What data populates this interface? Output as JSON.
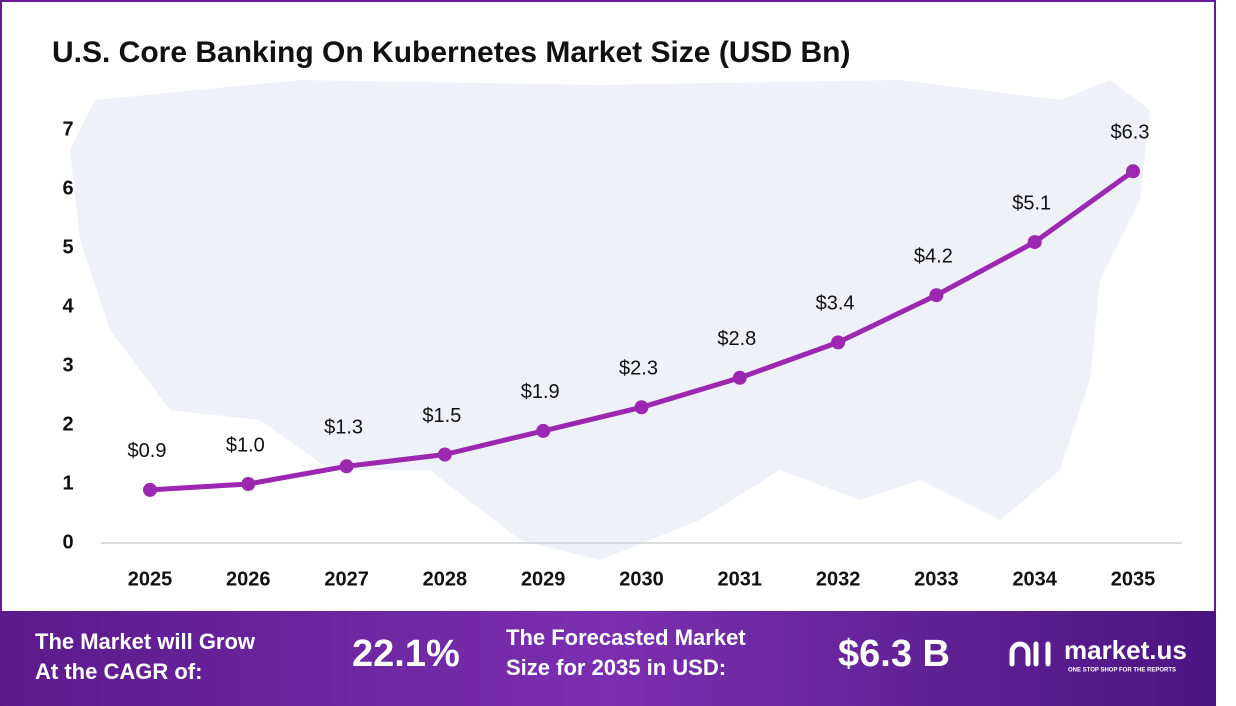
{
  "chart_data": {
    "type": "line",
    "title": "U.S. Core Banking On Kubernetes Market Size (USD Bn)",
    "categories": [
      "2025",
      "2026",
      "2027",
      "2028",
      "2029",
      "2030",
      "2031",
      "2032",
      "2033",
      "2034",
      "2035"
    ],
    "values": [
      0.9,
      1.0,
      1.3,
      1.5,
      1.9,
      2.3,
      2.8,
      3.4,
      4.2,
      5.1,
      6.3
    ],
    "value_labels": [
      "$0.9",
      "$1.0",
      "$1.3",
      "$1.5",
      "$1.9",
      "$2.3",
      "$2.8",
      "$3.4",
      "$4.2",
      "$5.1",
      "$6.3"
    ],
    "color": "#9c27b0",
    "ylim": [
      0,
      7
    ],
    "yticks": [
      0,
      1,
      2,
      3,
      4,
      5,
      6,
      7
    ],
    "grid": false
  },
  "footer": {
    "cagr_label": [
      "The Market will Grow",
      "At the CAGR of:"
    ],
    "cagr_value": "22.1%",
    "forecast_label": [
      "The Forecasted Market",
      "Size for 2035 in USD:"
    ],
    "forecast_value": "$6.3 B",
    "brand": "market.us",
    "tagline": "ONE STOP SHOP FOR THE REPORTS"
  }
}
